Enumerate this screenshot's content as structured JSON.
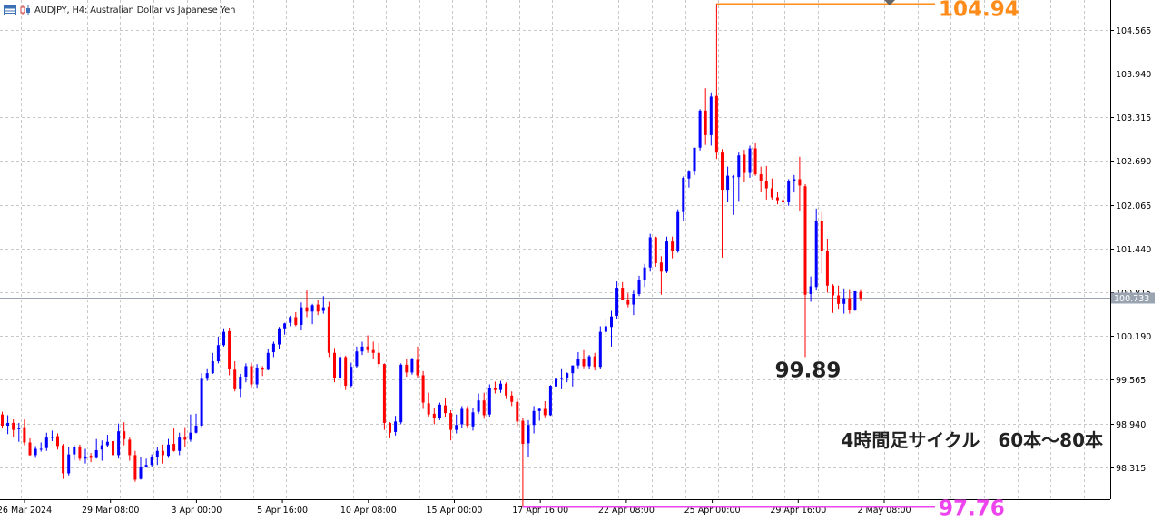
{
  "header": {
    "symbol_text": "AUDJPY, H4:  Australian Dollar vs Japanese Yen"
  },
  "colors": {
    "bull": "#0000ff",
    "bear": "#ff0000",
    "grid": "#c8c8c8",
    "axis": "#000000",
    "current_price_line": "#9aa4b1",
    "high_marker": "#ff8c1a",
    "low_marker": "#ee44ee",
    "annotation_text": "#222222"
  },
  "chart_data": {
    "type": "candlestick",
    "title": "AUDJPY, H4:  Australian Dollar vs Japanese Yen",
    "grid": true,
    "y_range": [
      97.86,
      104.99
    ],
    "y_ticks": [
      "104.565",
      "103.940",
      "103.315",
      "102.690",
      "102.065",
      "101.440",
      "100.815",
      "100.190",
      "99.565",
      "98.940",
      "98.315"
    ],
    "x_tick_labels": [
      "26 Mar 2024",
      "29 Mar 08:00",
      "3 Apr 00:00",
      "5 Apr 16:00",
      "10 Apr 08:00",
      "15 Apr 00:00",
      "17 Apr 16:00",
      "22 Apr 08:00",
      "25 Apr 00:00",
      "29 Apr 16:00",
      "2 May 08:00"
    ],
    "current_price": "100.733",
    "max_annotation": "104.94",
    "min_annotation": "97.76",
    "swing_low_annotation": "99.89",
    "cycle_note": "4時間足サイクル　60本〜80本",
    "candles": [
      [
        99.07,
        99.11,
        98.87,
        98.91
      ],
      [
        98.91,
        99.06,
        98.79,
        98.95
      ],
      [
        98.95,
        99.0,
        98.75,
        98.85
      ],
      [
        98.86,
        98.95,
        98.68,
        98.88
      ],
      [
        98.89,
        99.0,
        98.63,
        98.67
      ],
      [
        98.67,
        98.73,
        98.48,
        98.49
      ],
      [
        98.49,
        98.62,
        98.45,
        98.58
      ],
      [
        98.57,
        98.67,
        98.54,
        98.58
      ],
      [
        98.59,
        98.81,
        98.55,
        98.74
      ],
      [
        98.75,
        98.84,
        98.69,
        98.75
      ],
      [
        98.76,
        98.8,
        98.57,
        98.62
      ],
      [
        98.63,
        98.65,
        98.15,
        98.23
      ],
      [
        98.23,
        98.6,
        98.2,
        98.5
      ],
      [
        98.5,
        98.63,
        98.42,
        98.6
      ],
      [
        98.6,
        98.64,
        98.41,
        98.44
      ],
      [
        98.44,
        98.58,
        98.37,
        98.47
      ],
      [
        98.48,
        98.52,
        98.39,
        98.45
      ],
      [
        98.45,
        98.72,
        98.44,
        98.56
      ],
      [
        98.57,
        98.7,
        98.41,
        98.63
      ],
      [
        98.63,
        98.78,
        98.6,
        98.68
      ],
      [
        98.69,
        98.71,
        98.48,
        98.49
      ],
      [
        98.49,
        98.94,
        98.44,
        98.83
      ],
      [
        98.83,
        98.96,
        98.63,
        98.72
      ],
      [
        98.71,
        98.74,
        98.41,
        98.49
      ],
      [
        98.49,
        98.55,
        98.11,
        98.14
      ],
      [
        98.15,
        98.46,
        98.14,
        98.32
      ],
      [
        98.32,
        98.44,
        98.31,
        98.35
      ],
      [
        98.35,
        98.5,
        98.32,
        98.46
      ],
      [
        98.46,
        98.61,
        98.35,
        98.55
      ],
      [
        98.55,
        98.64,
        98.37,
        98.49
      ],
      [
        98.48,
        98.72,
        98.45,
        98.64
      ],
      [
        98.65,
        98.87,
        98.54,
        98.55
      ],
      [
        98.55,
        98.81,
        98.49,
        98.74
      ],
      [
        98.74,
        98.89,
        98.61,
        98.71
      ],
      [
        98.71,
        99.07,
        98.68,
        98.81
      ],
      [
        98.81,
        99.08,
        98.8,
        98.91
      ],
      [
        98.91,
        99.66,
        98.89,
        99.58
      ],
      [
        99.58,
        99.73,
        99.55,
        99.66
      ],
      [
        99.66,
        99.95,
        99.65,
        99.83
      ],
      [
        99.83,
        100.18,
        99.8,
        100.06
      ],
      [
        100.06,
        100.3,
        100.04,
        100.25
      ],
      [
        100.26,
        100.31,
        99.63,
        99.72
      ],
      [
        99.71,
        99.83,
        99.4,
        99.43
      ],
      [
        99.43,
        99.65,
        99.32,
        99.61
      ],
      [
        99.61,
        99.8,
        99.53,
        99.76
      ],
      [
        99.76,
        99.81,
        99.46,
        99.5
      ],
      [
        99.5,
        99.79,
        99.44,
        99.74
      ],
      [
        99.74,
        99.76,
        99.62,
        99.71
      ],
      [
        99.71,
        100.0,
        99.7,
        99.95
      ],
      [
        99.96,
        100.11,
        99.89,
        100.08
      ],
      [
        100.07,
        100.32,
        100.0,
        100.3
      ],
      [
        100.3,
        100.38,
        100.21,
        100.37
      ],
      [
        100.38,
        100.48,
        100.33,
        100.46
      ],
      [
        100.46,
        100.53,
        100.33,
        100.35
      ],
      [
        100.35,
        100.67,
        100.27,
        100.6
      ],
      [
        100.6,
        100.84,
        100.46,
        100.54
      ],
      [
        100.54,
        100.65,
        100.36,
        100.63
      ],
      [
        100.64,
        100.7,
        100.49,
        100.54
      ],
      [
        100.55,
        100.76,
        100.51,
        100.6
      ],
      [
        100.61,
        100.68,
        99.89,
        99.95
      ],
      [
        99.95,
        100.02,
        99.53,
        99.59
      ],
      [
        99.59,
        99.95,
        99.46,
        99.89
      ],
      [
        99.89,
        99.91,
        99.42,
        99.48
      ],
      [
        99.48,
        99.81,
        99.46,
        99.75
      ],
      [
        99.76,
        100.04,
        99.74,
        99.97
      ],
      [
        99.97,
        100.11,
        99.92,
        100.04
      ],
      [
        100.04,
        100.2,
        99.95,
        99.99
      ],
      [
        99.99,
        100.11,
        99.87,
        99.95
      ],
      [
        99.95,
        100.09,
        99.75,
        99.79
      ],
      [
        99.79,
        99.8,
        98.85,
        98.95
      ],
      [
        98.95,
        98.96,
        98.73,
        98.81
      ],
      [
        98.82,
        99.05,
        98.77,
        98.97
      ],
      [
        98.96,
        99.8,
        98.93,
        99.78
      ],
      [
        99.78,
        99.87,
        99.61,
        99.67
      ],
      [
        99.67,
        99.88,
        99.64,
        99.86
      ],
      [
        99.85,
        100.04,
        99.59,
        99.63
      ],
      [
        99.63,
        99.69,
        99.15,
        99.24
      ],
      [
        99.23,
        99.38,
        99.04,
        99.07
      ],
      [
        99.08,
        99.16,
        98.93,
        99.02
      ],
      [
        99.02,
        99.24,
        98.99,
        99.21
      ],
      [
        99.2,
        99.3,
        99.04,
        99.09
      ],
      [
        99.09,
        99.13,
        98.7,
        98.85
      ],
      [
        98.85,
        99.07,
        98.8,
        98.92
      ],
      [
        98.93,
        99.19,
        98.88,
        99.15
      ],
      [
        99.15,
        99.19,
        98.87,
        98.91
      ],
      [
        98.9,
        99.16,
        98.84,
        99.1
      ],
      [
        99.11,
        99.37,
        99.08,
        99.27
      ],
      [
        99.27,
        99.38,
        99.01,
        99.06
      ],
      [
        99.07,
        99.5,
        99.04,
        99.45
      ],
      [
        99.45,
        99.54,
        99.37,
        99.42
      ],
      [
        99.42,
        99.55,
        99.38,
        99.51
      ],
      [
        99.51,
        99.53,
        99.29,
        99.34
      ],
      [
        99.34,
        99.4,
        99.19,
        99.25
      ],
      [
        99.25,
        99.31,
        98.9,
        98.97
      ],
      [
        98.98,
        99.02,
        97.76,
        98.65
      ],
      [
        98.66,
        98.99,
        98.47,
        98.92
      ],
      [
        98.92,
        99.19,
        98.8,
        99.12
      ],
      [
        99.12,
        99.17,
        98.98,
        99.15
      ],
      [
        99.15,
        99.26,
        99.03,
        99.06
      ],
      [
        99.06,
        99.49,
        99.05,
        99.48
      ],
      [
        99.47,
        99.68,
        99.45,
        99.58
      ],
      [
        99.58,
        99.73,
        99.43,
        99.59
      ],
      [
        99.59,
        99.67,
        99.53,
        99.66
      ],
      [
        99.66,
        99.77,
        99.47,
        99.77
      ],
      [
        99.77,
        99.96,
        99.73,
        99.86
      ],
      [
        99.86,
        99.99,
        99.73,
        99.76
      ],
      [
        99.76,
        99.92,
        99.72,
        99.9
      ],
      [
        99.9,
        99.95,
        99.7,
        99.75
      ],
      [
        99.75,
        100.33,
        99.72,
        100.25
      ],
      [
        100.25,
        100.43,
        100.21,
        100.33
      ],
      [
        100.32,
        100.55,
        100.04,
        100.47
      ],
      [
        100.48,
        100.97,
        100.43,
        100.88
      ],
      [
        100.88,
        100.96,
        100.7,
        100.71
      ],
      [
        100.71,
        100.8,
        100.6,
        100.64
      ],
      [
        100.64,
        100.84,
        100.49,
        100.79
      ],
      [
        100.79,
        101.05,
        100.76,
        100.99
      ],
      [
        100.99,
        101.22,
        100.89,
        101.17
      ],
      [
        101.17,
        101.65,
        101.11,
        101.6
      ],
      [
        101.6,
        101.61,
        101.18,
        101.23
      ],
      [
        101.24,
        101.33,
        100.78,
        101.11
      ],
      [
        101.11,
        101.61,
        101.09,
        101.54
      ],
      [
        101.54,
        101.61,
        101.3,
        101.41
      ],
      [
        101.41,
        102.0,
        101.38,
        101.96
      ],
      [
        101.96,
        102.47,
        101.84,
        102.45
      ],
      [
        102.44,
        102.56,
        102.31,
        102.55
      ],
      [
        102.55,
        102.87,
        102.49,
        102.88
      ],
      [
        102.88,
        103.43,
        102.84,
        103.41
      ],
      [
        103.41,
        103.73,
        102.92,
        103.06
      ],
      [
        103.06,
        103.67,
        102.91,
        103.61
      ],
      [
        103.62,
        104.94,
        102.72,
        102.81
      ],
      [
        102.81,
        102.86,
        101.31,
        102.28
      ],
      [
        102.28,
        102.61,
        102.11,
        102.48
      ],
      [
        102.47,
        102.49,
        101.92,
        102.47
      ],
      [
        102.46,
        102.81,
        102.12,
        102.77
      ],
      [
        102.78,
        102.85,
        102.39,
        102.52
      ],
      [
        102.52,
        102.91,
        102.45,
        102.87
      ],
      [
        102.87,
        102.95,
        102.48,
        102.5
      ],
      [
        102.5,
        102.61,
        102.25,
        102.41
      ],
      [
        102.41,
        102.62,
        102.14,
        102.3
      ],
      [
        102.3,
        102.44,
        102.14,
        102.17
      ],
      [
        102.17,
        102.25,
        102.07,
        102.13
      ],
      [
        102.13,
        102.22,
        101.97,
        102.11
      ],
      [
        102.1,
        102.43,
        102.05,
        102.41
      ],
      [
        102.41,
        102.49,
        102.24,
        102.43
      ],
      [
        102.43,
        102.75,
        101.98,
        102.34
      ],
      [
        102.33,
        102.36,
        99.89,
        100.78
      ],
      [
        100.79,
        101.04,
        100.68,
        100.9
      ],
      [
        100.89,
        102.01,
        100.84,
        101.84
      ],
      [
        101.84,
        101.96,
        101.08,
        101.4
      ],
      [
        101.4,
        101.58,
        100.81,
        100.91
      ],
      [
        100.91,
        100.93,
        100.52,
        100.77
      ],
      [
        100.77,
        100.91,
        100.58,
        100.65
      ],
      [
        100.65,
        100.87,
        100.51,
        100.73
      ],
      [
        100.73,
        100.86,
        100.51,
        100.56
      ],
      [
        100.56,
        100.82,
        100.55,
        100.83
      ],
      [
        100.82,
        100.86,
        100.69,
        100.73
      ]
    ]
  },
  "icons": [
    "chart-window-icon",
    "candlestick-icon"
  ]
}
